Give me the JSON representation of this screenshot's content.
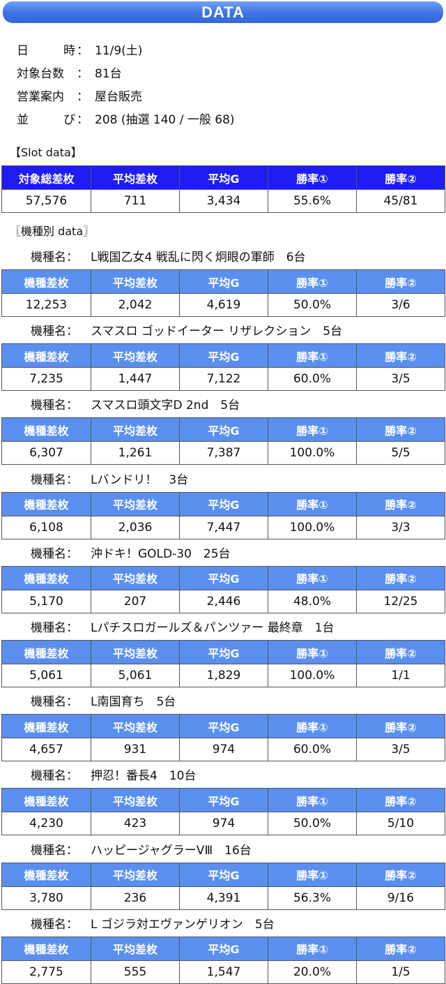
{
  "title": "DATA",
  "info": [
    {
      "label": [
        "日",
        "時"
      ],
      "value": "11/9(土)"
    },
    {
      "label": [
        "対象台数"
      ],
      "value": "81台"
    },
    {
      "label": [
        "営業案内"
      ],
      "value": "屋台販売"
    },
    {
      "label": [
        "並",
        "び"
      ],
      "value": "208 (抽選 140 / 一般 68)"
    }
  ],
  "info_colon": "：",
  "slot_title": "【Slot data】",
  "slot_headers": [
    "対象総差枚",
    "平均差枚",
    "平均G",
    "勝率①",
    "勝率②"
  ],
  "slot_values": [
    "57,576",
    "711",
    "3,434",
    "55.6%",
    "45/81"
  ],
  "model_title": "〖機種別 data〗",
  "model_label": "機種名：",
  "model_headers": [
    "機種差枚",
    "平均差枚",
    "平均G",
    "勝率①",
    "勝率②"
  ],
  "models": [
    {
      "name": "L戦国乙女4 戦乱に閃く炯眼の軍師　6台",
      "values": [
        "12,253",
        "2,042",
        "4,619",
        "50.0%",
        "3/6"
      ]
    },
    {
      "name": "スマスロ ゴッドイーター リザレクション　5台",
      "values": [
        "7,235",
        "1,447",
        "7,122",
        "60.0%",
        "3/5"
      ]
    },
    {
      "name": "スマスロ頭文字D 2nd　5台",
      "values": [
        "6,307",
        "1,261",
        "7,387",
        "100.0%",
        "5/5"
      ]
    },
    {
      "name": "Lバンドリ！　3台",
      "values": [
        "6,108",
        "2,036",
        "7,447",
        "100.0%",
        "3/3"
      ]
    },
    {
      "name": "沖ドキ！GOLD-30　25台",
      "values": [
        "5,170",
        "207",
        "2,446",
        "48.0%",
        "12/25"
      ]
    },
    {
      "name": "Lパチスロガールズ＆パンツァー 最終章　1台",
      "values": [
        "5,061",
        "5,061",
        "1,829",
        "100.0%",
        "1/1"
      ]
    },
    {
      "name": "L南国育ち　5台",
      "values": [
        "4,657",
        "931",
        "974",
        "60.0%",
        "3/5"
      ]
    },
    {
      "name": "押忍！番長4　10台",
      "values": [
        "4,230",
        "423",
        "974",
        "50.0%",
        "5/10"
      ]
    },
    {
      "name": "ハッピージャグラーVⅢ　16台",
      "values": [
        "3,780",
        "236",
        "4,391",
        "56.3%",
        "9/16"
      ]
    },
    {
      "name": "L ゴジラ対エヴァンゲリオン　5台",
      "values": [
        "2,775",
        "555",
        "1,547",
        "20.0%",
        "1/5"
      ]
    }
  ]
}
